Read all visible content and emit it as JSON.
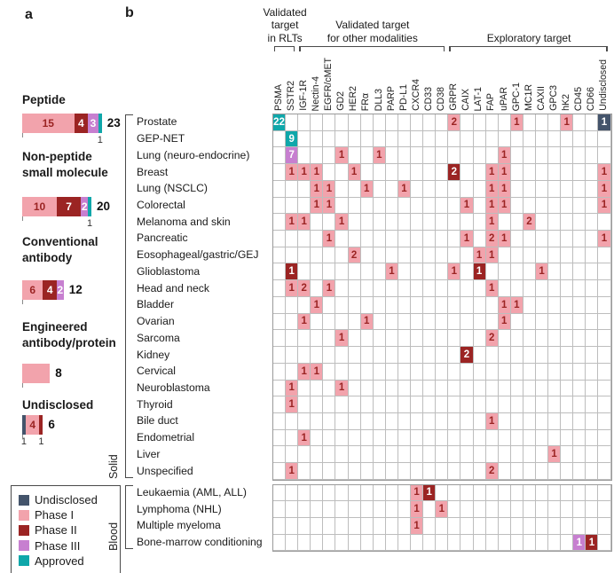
{
  "colors": {
    "phase1": "#f2a3ac",
    "phase2": "#9b2423",
    "phase3": "#c77fd0",
    "approved": "#0fa7aa",
    "undisclosed": "#44546b",
    "pink_text": "#9b2423",
    "white_text": "#ffffff"
  },
  "chart_data": [
    {
      "type": "bar",
      "panel": "a",
      "orientation": "horizontal-stacked",
      "legend_position": "bottom-left",
      "legend": [
        {
          "label": "Undisclosed",
          "phase": "undisclosed"
        },
        {
          "label": "Phase I",
          "phase": "phase1"
        },
        {
          "label": "Phase II",
          "phase": "phase2"
        },
        {
          "label": "Phase III",
          "phase": "phase3"
        },
        {
          "label": "Approved",
          "phase": "approved"
        }
      ],
      "groups": [
        {
          "name": "Peptide",
          "total": 23,
          "segments": [
            {
              "phase": "phase1",
              "value": 15,
              "show": "inside"
            },
            {
              "phase": "phase2",
              "value": 4,
              "show": "inside"
            },
            {
              "phase": "phase3",
              "value": 3,
              "show": "inside"
            },
            {
              "phase": "approved",
              "value": 1,
              "show": "below"
            }
          ]
        },
        {
          "name": "Non-peptide\nsmall molecule",
          "total": 20,
          "segments": [
            {
              "phase": "phase1",
              "value": 10,
              "show": "inside"
            },
            {
              "phase": "phase2",
              "value": 7,
              "show": "inside"
            },
            {
              "phase": "phase3",
              "value": 2,
              "show": "inside"
            },
            {
              "phase": "approved",
              "value": 1,
              "show": "below"
            }
          ]
        },
        {
          "name": "Conventional\nantibody",
          "total": 12,
          "segments": [
            {
              "phase": "phase1",
              "value": 6,
              "show": "inside"
            },
            {
              "phase": "phase2",
              "value": 4,
              "show": "inside"
            },
            {
              "phase": "phase3",
              "value": 2,
              "show": "inside"
            }
          ]
        },
        {
          "name": "Engineered\nantibody/protein",
          "total": 8,
          "segments": [
            {
              "phase": "phase1",
              "value": 8,
              "show": "none"
            }
          ]
        },
        {
          "name": "Undisclosed",
          "total": 6,
          "segments": [
            {
              "phase": "undisclosed",
              "value": 1,
              "show": "below"
            },
            {
              "phase": "phase1",
              "value": 4,
              "show": "inside"
            },
            {
              "phase": "phase2",
              "value": 1,
              "show": "below"
            }
          ]
        }
      ]
    },
    {
      "type": "heatmap",
      "panel": "b",
      "col_groups": [
        {
          "label": "Validated\ntarget\nin RLTs",
          "start": 0,
          "end": 1
        },
        {
          "label": "Validated target\nfor other modalities",
          "start": 2,
          "end": 13
        },
        {
          "label": "Exploratory target",
          "start": 14,
          "end": 26
        }
      ],
      "columns": [
        "PSMA",
        "SSTR2",
        "IGF-1R",
        "Nectin-4",
        "EGFR/cMET",
        "GD2",
        "HER2",
        "FRα",
        "DLL3",
        "PARP",
        "PD-L1",
        "CXCR4",
        "CD33",
        "CD38",
        "GRPR",
        "CAIX",
        "LAT-1",
        "FAP",
        "uPAR",
        "GPC-1",
        "MC1R",
        "CAXII",
        "GPC3",
        "hK2",
        "CD45",
        "CD66",
        "Undisclosed"
      ],
      "sections": [
        {
          "label": "Solid",
          "rows": [
            {
              "label": "Prostate",
              "cells": [
                {
                  "c": "PSMA",
                  "v": 22,
                  "p": "approved"
                },
                {
                  "c": "GRPR",
                  "v": 2,
                  "p": "phase1"
                },
                {
                  "c": "GPC-1",
                  "v": 1,
                  "p": "phase1"
                },
                {
                  "c": "hK2",
                  "v": 1,
                  "p": "phase1"
                },
                {
                  "c": "Undisclosed",
                  "v": 1,
                  "p": "undisclosed"
                }
              ]
            },
            {
              "label": "GEP-NET",
              "cells": [
                {
                  "c": "SSTR2",
                  "v": 9,
                  "p": "approved"
                }
              ]
            },
            {
              "label": "Lung (neuro-endocrine)",
              "cells": [
                {
                  "c": "SSTR2",
                  "v": 7,
                  "p": "phase3"
                },
                {
                  "c": "GD2",
                  "v": 1,
                  "p": "phase1"
                },
                {
                  "c": "DLL3",
                  "v": 1,
                  "p": "phase1"
                },
                {
                  "c": "uPAR",
                  "v": 1,
                  "p": "phase1"
                }
              ]
            },
            {
              "label": "Breast",
              "cells": [
                {
                  "c": "SSTR2",
                  "v": 1,
                  "p": "phase1"
                },
                {
                  "c": "IGF-1R",
                  "v": 1,
                  "p": "phase1"
                },
                {
                  "c": "Nectin-4",
                  "v": 1,
                  "p": "phase1"
                },
                {
                  "c": "HER2",
                  "v": 1,
                  "p": "phase1"
                },
                {
                  "c": "GRPR",
                  "v": 2,
                  "p": "phase2"
                },
                {
                  "c": "FAP",
                  "v": 1,
                  "p": "phase1"
                },
                {
                  "c": "uPAR",
                  "v": 1,
                  "p": "phase1"
                },
                {
                  "c": "Undisclosed",
                  "v": 1,
                  "p": "phase1"
                }
              ]
            },
            {
              "label": "Lung (NSCLC)",
              "cells": [
                {
                  "c": "Nectin-4",
                  "v": 1,
                  "p": "phase1"
                },
                {
                  "c": "EGFR/cMET",
                  "v": 1,
                  "p": "phase1"
                },
                {
                  "c": "FRα",
                  "v": 1,
                  "p": "phase1"
                },
                {
                  "c": "PD-L1",
                  "v": 1,
                  "p": "phase1"
                },
                {
                  "c": "FAP",
                  "v": 1,
                  "p": "phase1"
                },
                {
                  "c": "uPAR",
                  "v": 1,
                  "p": "phase1"
                },
                {
                  "c": "Undisclosed",
                  "v": 1,
                  "p": "phase1"
                }
              ]
            },
            {
              "label": "Colorectal",
              "cells": [
                {
                  "c": "Nectin-4",
                  "v": 1,
                  "p": "phase1"
                },
                {
                  "c": "EGFR/cMET",
                  "v": 1,
                  "p": "phase1"
                },
                {
                  "c": "CAIX",
                  "v": 1,
                  "p": "phase1"
                },
                {
                  "c": "FAP",
                  "v": 1,
                  "p": "phase1"
                },
                {
                  "c": "uPAR",
                  "v": 1,
                  "p": "phase1"
                },
                {
                  "c": "Undisclosed",
                  "v": 1,
                  "p": "phase1"
                }
              ]
            },
            {
              "label": "Melanoma and skin",
              "cells": [
                {
                  "c": "SSTR2",
                  "v": 1,
                  "p": "phase1"
                },
                {
                  "c": "IGF-1R",
                  "v": 1,
                  "p": "phase1"
                },
                {
                  "c": "GD2",
                  "v": 1,
                  "p": "phase1"
                },
                {
                  "c": "FAP",
                  "v": 1,
                  "p": "phase1"
                },
                {
                  "c": "MC1R",
                  "v": 2,
                  "p": "phase1"
                }
              ]
            },
            {
              "label": "Pancreatic",
              "cells": [
                {
                  "c": "EGFR/cMET",
                  "v": 1,
                  "p": "phase1"
                },
                {
                  "c": "CAIX",
                  "v": 1,
                  "p": "phase1"
                },
                {
                  "c": "FAP",
                  "v": 2,
                  "p": "phase1"
                },
                {
                  "c": "uPAR",
                  "v": 1,
                  "p": "phase1"
                },
                {
                  "c": "Undisclosed",
                  "v": 1,
                  "p": "phase1"
                }
              ]
            },
            {
              "label": "Eosophageal/gastric/GEJ",
              "cells": [
                {
                  "c": "HER2",
                  "v": 2,
                  "p": "phase1"
                },
                {
                  "c": "LAT-1",
                  "v": 1,
                  "p": "phase1"
                },
                {
                  "c": "FAP",
                  "v": 1,
                  "p": "phase1"
                }
              ]
            },
            {
              "label": "Glioblastoma",
              "cells": [
                {
                  "c": "SSTR2",
                  "v": 1,
                  "p": "phase2"
                },
                {
                  "c": "PARP",
                  "v": 1,
                  "p": "phase1"
                },
                {
                  "c": "GRPR",
                  "v": 1,
                  "p": "phase1"
                },
                {
                  "c": "LAT-1",
                  "v": 1,
                  "p": "phase2"
                },
                {
                  "c": "CAXII",
                  "v": 1,
                  "p": "phase1"
                }
              ]
            },
            {
              "label": "Head and neck",
              "cells": [
                {
                  "c": "SSTR2",
                  "v": 1,
                  "p": "phase1"
                },
                {
                  "c": "IGF-1R",
                  "v": 2,
                  "p": "phase1"
                },
                {
                  "c": "EGFR/cMET",
                  "v": 1,
                  "p": "phase1"
                },
                {
                  "c": "FAP",
                  "v": 1,
                  "p": "phase1"
                }
              ]
            },
            {
              "label": "Bladder",
              "cells": [
                {
                  "c": "Nectin-4",
                  "v": 1,
                  "p": "phase1"
                },
                {
                  "c": "uPAR",
                  "v": 1,
                  "p": "phase1"
                },
                {
                  "c": "GPC-1",
                  "v": 1,
                  "p": "phase1"
                }
              ]
            },
            {
              "label": "Ovarian",
              "cells": [
                {
                  "c": "IGF-1R",
                  "v": 1,
                  "p": "phase1"
                },
                {
                  "c": "FRα",
                  "v": 1,
                  "p": "phase1"
                },
                {
                  "c": "uPAR",
                  "v": 1,
                  "p": "phase1"
                }
              ]
            },
            {
              "label": "Sarcoma",
              "cells": [
                {
                  "c": "GD2",
                  "v": 1,
                  "p": "phase1"
                },
                {
                  "c": "FAP",
                  "v": 2,
                  "p": "phase1"
                }
              ]
            },
            {
              "label": "Kidney",
              "cells": [
                {
                  "c": "CAIX",
                  "v": 2,
                  "p": "phase2"
                }
              ]
            },
            {
              "label": "Cervical",
              "cells": [
                {
                  "c": "IGF-1R",
                  "v": 1,
                  "p": "phase1"
                },
                {
                  "c": "Nectin-4",
                  "v": 1,
                  "p": "phase1"
                }
              ]
            },
            {
              "label": "Neuroblastoma",
              "cells": [
                {
                  "c": "SSTR2",
                  "v": 1,
                  "p": "phase1"
                },
                {
                  "c": "GD2",
                  "v": 1,
                  "p": "phase1"
                }
              ]
            },
            {
              "label": "Thyroid",
              "cells": [
                {
                  "c": "SSTR2",
                  "v": 1,
                  "p": "phase1"
                }
              ]
            },
            {
              "label": "Bile duct",
              "cells": [
                {
                  "c": "FAP",
                  "v": 1,
                  "p": "phase1"
                }
              ]
            },
            {
              "label": "Endometrial",
              "cells": [
                {
                  "c": "IGF-1R",
                  "v": 1,
                  "p": "phase1"
                }
              ]
            },
            {
              "label": "Liver",
              "cells": [
                {
                  "c": "GPC3",
                  "v": 1,
                  "p": "phase1"
                }
              ]
            },
            {
              "label": "Unspecified",
              "cells": [
                {
                  "c": "SSTR2",
                  "v": 1,
                  "p": "phase1"
                },
                {
                  "c": "FAP",
                  "v": 2,
                  "p": "phase1"
                }
              ]
            }
          ]
        },
        {
          "label": "Blood",
          "rows": [
            {
              "label": "Leukaemia (AML, ALL)",
              "cells": [
                {
                  "c": "CXCR4",
                  "v": 1,
                  "p": "phase1"
                },
                {
                  "c": "CD33",
                  "v": 1,
                  "p": "phase2"
                }
              ]
            },
            {
              "label": "Lymphoma (NHL)",
              "cells": [
                {
                  "c": "CXCR4",
                  "v": 1,
                  "p": "phase1"
                },
                {
                  "c": "CD38",
                  "v": 1,
                  "p": "phase1"
                }
              ]
            },
            {
              "label": "Multiple myeloma",
              "cells": [
                {
                  "c": "CXCR4",
                  "v": 1,
                  "p": "phase1"
                }
              ]
            },
            {
              "label": "Bone-marrow conditioning",
              "cells": [
                {
                  "c": "CD45",
                  "v": 1,
                  "p": "phase3"
                },
                {
                  "c": "CD66",
                  "v": 1,
                  "p": "phase2"
                }
              ]
            }
          ]
        }
      ]
    }
  ],
  "panel_a_letter": "a",
  "panel_b_letter": "b"
}
